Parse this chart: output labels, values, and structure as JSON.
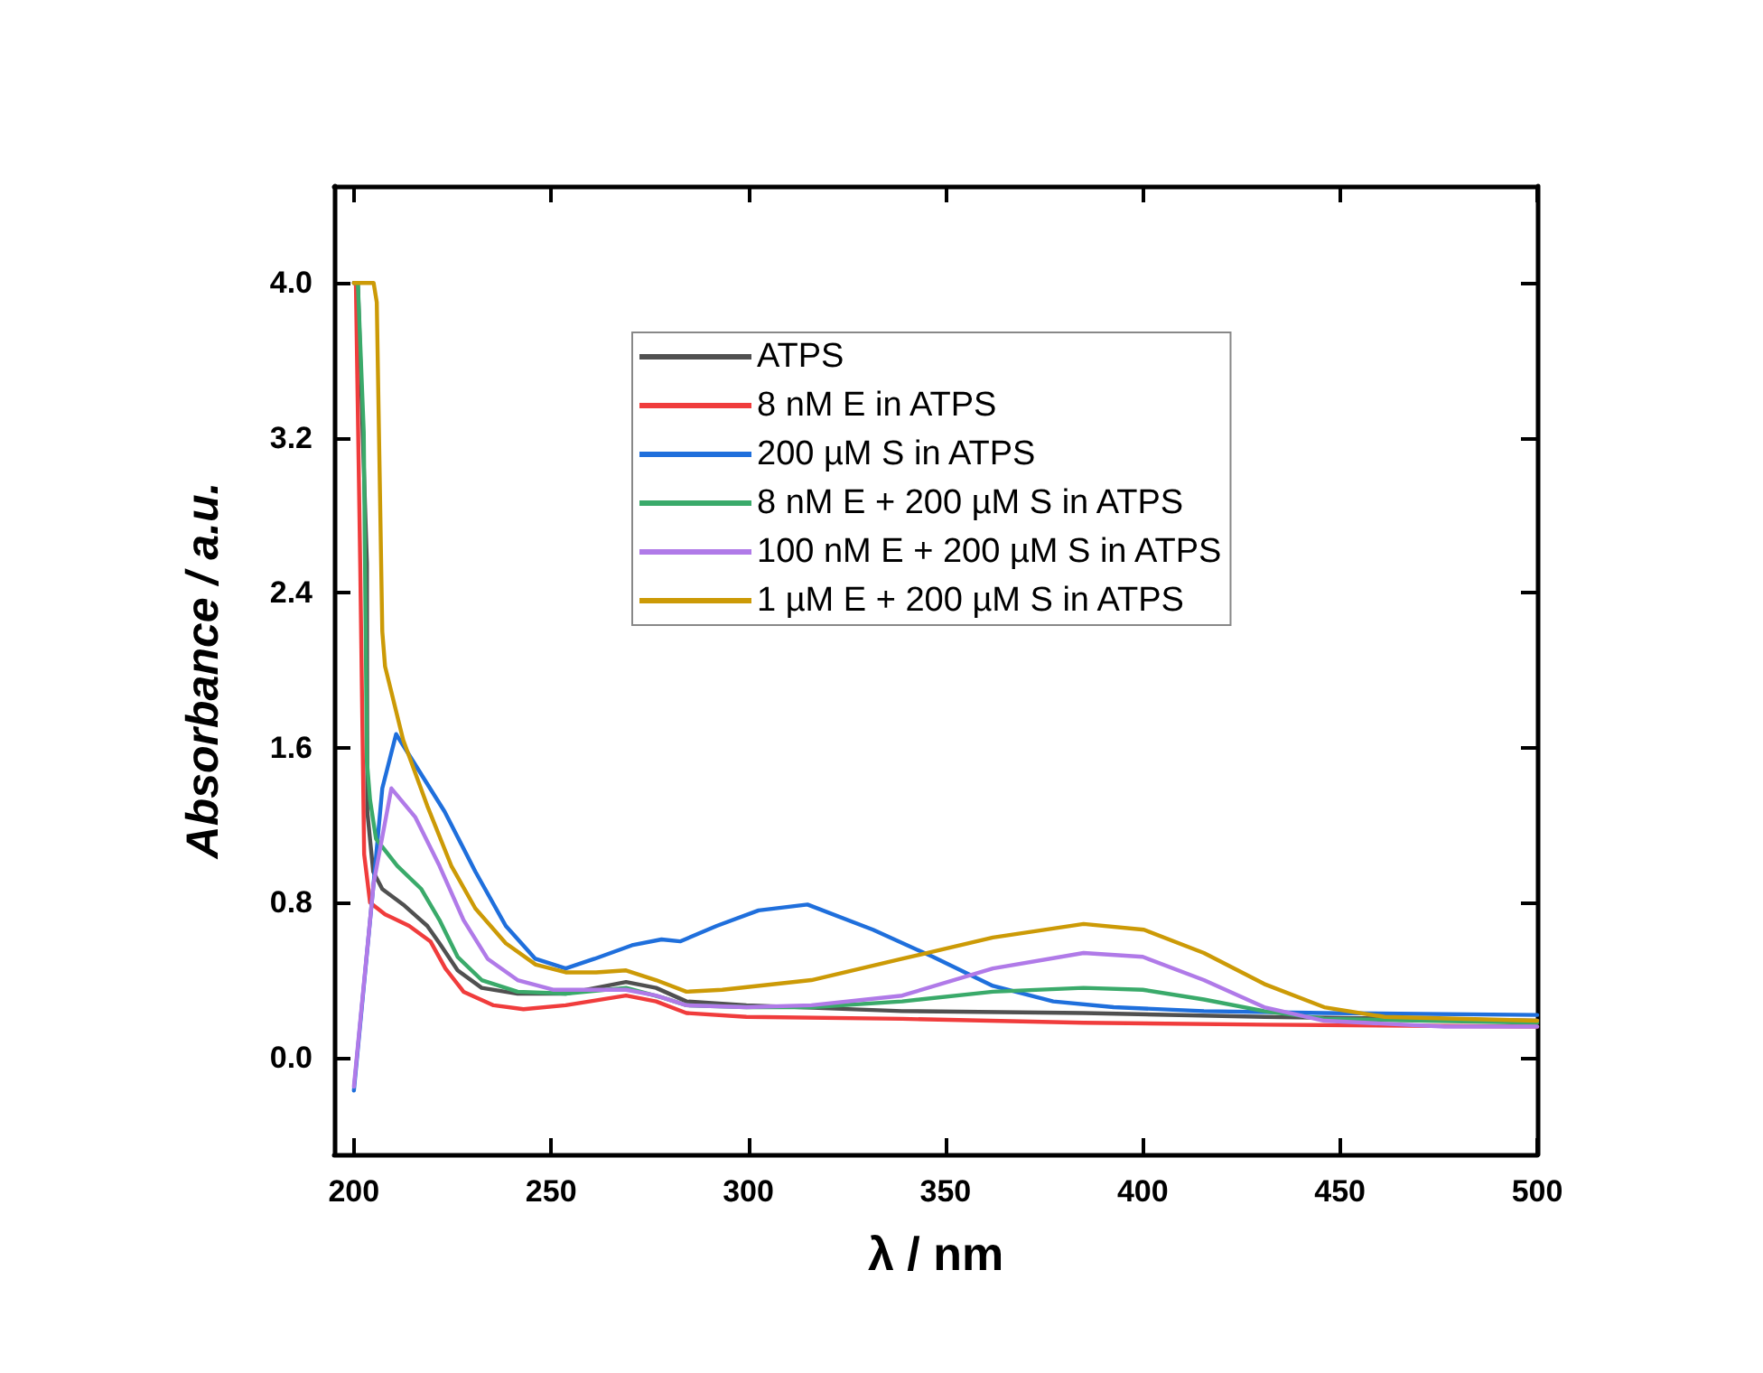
{
  "chart_data": {
    "type": "line",
    "xlabel": "λ / nm",
    "ylabel": "Absorbance / a.u.",
    "xlim": [
      195,
      500
    ],
    "xticks": [
      200,
      250,
      300,
      350,
      400,
      450,
      500
    ],
    "ylim": [
      -0.5,
      4.5
    ],
    "yticks": [
      {
        "value": 0,
        "label": "0.0"
      },
      0.8,
      1.6,
      2.4,
      3.2,
      {
        "value": 4,
        "label": "4.0"
      }
    ],
    "grid": false,
    "legend": "top right",
    "marker": "none",
    "line_style": "solid",
    "series": [
      {
        "name": "ATPS",
        "color": "#505050",
        "x": [
          200,
          201,
          203.3,
          203.4,
          204.9,
          207.2,
          212.5,
          218.6,
          221.7,
          226.3,
          232.4,
          241.5,
          253.7,
          269,
          276.6,
          284.3,
          299.5,
          339,
          385,
          431,
          500
        ],
        "values": [
          4.0,
          4.0,
          2.55,
          1.27,
          0.96,
          0.87,
          0.79,
          0.68,
          0.59,
          0.45,
          0.36,
          0.33,
          0.33,
          0.39,
          0.36,
          0.29,
          0.27,
          0.24,
          0.23,
          0.21,
          0.19
        ]
      },
      {
        "name": "8 nM E in ATPS",
        "color": "#f03c3c",
        "x": [
          200,
          200.5,
          201.6,
          202.6,
          204.1,
          207.9,
          214,
          219.4,
          223.2,
          227.8,
          235.4,
          243,
          253.7,
          269,
          276.6,
          284.3,
          299.5,
          339,
          385,
          431,
          500
        ],
        "values": [
          4.0,
          4.0,
          2.55,
          1.05,
          0.8,
          0.74,
          0.68,
          0.6,
          0.46,
          0.34,
          0.27,
          0.25,
          0.27,
          0.32,
          0.29,
          0.23,
          0.21,
          0.2,
          0.18,
          0.17,
          0.16
        ]
      },
      {
        "name": "200 µM S in ATPS",
        "color": "#1f6fdc",
        "x": [
          200,
          205,
          207.2,
          210.7,
          223,
          230.8,
          238.5,
          246,
          253.7,
          261,
          270.5,
          278,
          282.7,
          292,
          302.6,
          315,
          331.6,
          346.8,
          362,
          377.3,
          392.6,
          415.5,
          446,
          500
        ],
        "values": [
          -0.17,
          0.9,
          1.39,
          1.67,
          1.27,
          0.96,
          0.68,
          0.51,
          0.46,
          0.51,
          0.58,
          0.61,
          0.6,
          0.68,
          0.76,
          0.79,
          0.66,
          0.52,
          0.37,
          0.29,
          0.26,
          0.24,
          0.23,
          0.22
        ]
      },
      {
        "name": "8 nM E + 200 µM S in ATPS",
        "color": "#3aaa6a",
        "x": [
          200,
          201,
          202.5,
          203.3,
          204.1,
          205.6,
          211,
          217.1,
          221.7,
          226.3,
          232.4,
          241.5,
          253.7,
          269,
          278.2,
          284.3,
          299.5,
          316,
          339,
          362,
          385,
          400,
          415.5,
          430.8,
          446,
          500
        ],
        "values": [
          4.0,
          4.0,
          3.23,
          1.53,
          1.33,
          1.13,
          0.99,
          0.87,
          0.71,
          0.52,
          0.4,
          0.34,
          0.33,
          0.36,
          0.31,
          0.27,
          0.26,
          0.26,
          0.29,
          0.34,
          0.36,
          0.35,
          0.3,
          0.24,
          0.2,
          0.18
        ]
      },
      {
        "name": "100 nM E + 200 µM S in ATPS",
        "color": "#b07ae8",
        "x": [
          200,
          205,
          209.5,
          215.6,
          221.7,
          227.8,
          233.9,
          241.5,
          250.7,
          261.4,
          269,
          276.6,
          284.3,
          299.5,
          316,
          339,
          362,
          385,
          400,
          415.5,
          430.8,
          446,
          476.5,
          500
        ],
        "values": [
          -0.15,
          0.9,
          1.39,
          1.24,
          0.99,
          0.71,
          0.51,
          0.4,
          0.35,
          0.35,
          0.35,
          0.32,
          0.27,
          0.26,
          0.27,
          0.32,
          0.46,
          0.54,
          0.52,
          0.4,
          0.26,
          0.19,
          0.16,
          0.16
        ]
      },
      {
        "name": "1 µM E + 200 µM S in ATPS",
        "color": "#cc9a06",
        "x": [
          200,
          205,
          205.8,
          207.2,
          207.9,
          212.5,
          218.6,
          224.7,
          230.8,
          238.5,
          246.1,
          253.7,
          261.4,
          269,
          276.6,
          284.3,
          293.4,
          316,
          339,
          362,
          385,
          400.3,
          415.5,
          430.8,
          446,
          461.3,
          500
        ],
        "values": [
          4.0,
          4.0,
          3.9,
          2.2,
          2.02,
          1.64,
          1.3,
          0.99,
          0.77,
          0.59,
          0.48,
          0.44,
          0.44,
          0.45,
          0.4,
          0.34,
          0.35,
          0.4,
          0.51,
          0.62,
          0.69,
          0.66,
          0.54,
          0.38,
          0.26,
          0.21,
          0.19
        ]
      }
    ]
  }
}
